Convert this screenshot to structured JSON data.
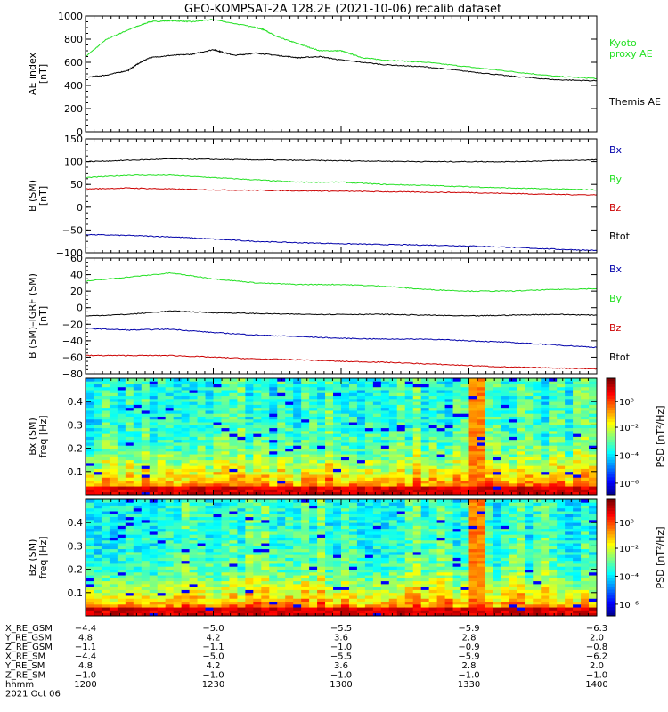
{
  "title": "GEO-KOMPSAT-2A 128.2E (2021-10-06) recalib dataset",
  "colors": {
    "black": "#000000",
    "green": "#22e022",
    "red": "#cc0000",
    "blue": "#0000aa"
  },
  "chart_data": [
    {
      "type": "line",
      "ylabel": [
        "AE index",
        "[nT]"
      ],
      "ylim": [
        0,
        1000
      ],
      "yticks": [
        0,
        200,
        400,
        600,
        800,
        1000
      ],
      "series": [
        {
          "name": "Kyoto proxy AE",
          "label_lines": [
            "Kyoto",
            "proxy AE"
          ],
          "color": "#22e022",
          "x": [
            0,
            5,
            10,
            15,
            20,
            25,
            30,
            40,
            42,
            45,
            50,
            55,
            60,
            65,
            70,
            80,
            90,
            100,
            110,
            120
          ],
          "y": [
            650,
            800,
            880,
            950,
            960,
            950,
            970,
            900,
            880,
            820,
            760,
            700,
            700,
            640,
            620,
            600,
            560,
            520,
            480,
            460
          ]
        },
        {
          "name": "Themis AE",
          "label_lines": [
            "Themis AE"
          ],
          "color": "#000000",
          "x": [
            0,
            5,
            10,
            12,
            15,
            20,
            25,
            30,
            32,
            35,
            40,
            45,
            50,
            55,
            60,
            70,
            80,
            90,
            100,
            110,
            120
          ],
          "y": [
            470,
            490,
            530,
            580,
            640,
            660,
            670,
            710,
            690,
            660,
            680,
            660,
            640,
            650,
            620,
            580,
            560,
            520,
            480,
            450,
            440
          ]
        }
      ]
    },
    {
      "type": "line",
      "ylabel": [
        "B (SM)",
        "[nT]"
      ],
      "ylim": [
        -100,
        150
      ],
      "yticks": [
        -100,
        -50,
        0,
        50,
        100,
        150
      ],
      "series": [
        {
          "name": "Bx",
          "color": "#0000aa",
          "x": [
            0,
            10,
            20,
            30,
            40,
            50,
            60,
            70,
            80,
            90,
            100,
            110,
            120
          ],
          "y": [
            -60,
            -62,
            -65,
            -70,
            -75,
            -78,
            -80,
            -82,
            -83,
            -85,
            -88,
            -92,
            -95
          ]
        },
        {
          "name": "By",
          "color": "#22e022",
          "x": [
            0,
            10,
            20,
            30,
            40,
            50,
            60,
            70,
            80,
            90,
            100,
            110,
            120
          ],
          "y": [
            65,
            70,
            70,
            65,
            60,
            55,
            55,
            50,
            48,
            45,
            42,
            40,
            38
          ]
        },
        {
          "name": "Bz",
          "color": "#cc0000",
          "x": [
            0,
            10,
            20,
            30,
            40,
            50,
            60,
            70,
            80,
            90,
            100,
            110,
            120
          ],
          "y": [
            40,
            42,
            40,
            38,
            37,
            36,
            35,
            34,
            33,
            32,
            30,
            28,
            27
          ]
        },
        {
          "name": "Btot",
          "color": "#000000",
          "x": [
            0,
            10,
            20,
            30,
            40,
            50,
            60,
            70,
            80,
            90,
            100,
            110,
            120
          ],
          "y": [
            100,
            103,
            106,
            105,
            104,
            103,
            102,
            101,
            100,
            100,
            100,
            102,
            104
          ]
        }
      ]
    },
    {
      "type": "line",
      "ylabel": [
        "B (SM)–IGRF (SM)",
        "[nT]"
      ],
      "ylim": [
        -80,
        60
      ],
      "yticks": [
        -80,
        -60,
        -40,
        -20,
        0,
        20,
        40,
        60
      ],
      "series": [
        {
          "name": "Bx",
          "color": "#0000aa",
          "x": [
            0,
            10,
            20,
            30,
            40,
            50,
            60,
            70,
            80,
            90,
            100,
            110,
            120
          ],
          "y": [
            -25,
            -27,
            -26,
            -30,
            -33,
            -35,
            -37,
            -38,
            -38,
            -40,
            -42,
            -45,
            -48
          ]
        },
        {
          "name": "By",
          "color": "#22e022",
          "x": [
            0,
            10,
            20,
            30,
            40,
            50,
            60,
            70,
            80,
            90,
            100,
            110,
            120
          ],
          "y": [
            32,
            37,
            42,
            35,
            30,
            28,
            28,
            26,
            22,
            20,
            20,
            22,
            23
          ]
        },
        {
          "name": "Bz",
          "color": "#cc0000",
          "x": [
            0,
            10,
            20,
            30,
            40,
            50,
            60,
            70,
            80,
            90,
            100,
            110,
            120
          ],
          "y": [
            -58,
            -58,
            -58,
            -60,
            -62,
            -63,
            -65,
            -66,
            -68,
            -70,
            -72,
            -73,
            -74
          ]
        },
        {
          "name": "Btot",
          "color": "#000000",
          "x": [
            0,
            10,
            20,
            30,
            40,
            50,
            60,
            70,
            80,
            90,
            100,
            110,
            120
          ],
          "y": [
            -10,
            -8,
            -4,
            -6,
            -7,
            -8,
            -8,
            -8,
            -9,
            -10,
            -9,
            -8,
            -9
          ]
        }
      ]
    },
    {
      "type": "heatmap",
      "ylabel": [
        "Bx (SM)",
        "freq [Hz]"
      ],
      "yticks": [
        0.1,
        0.2,
        0.3,
        0.4
      ],
      "colorbar_label": "PSD [nT²/Hz]",
      "colorbar_ticks": [
        "10⁰",
        "10⁻²",
        "10⁻⁴",
        "10⁻⁶"
      ],
      "colorbar_values": [
        0,
        -2,
        -4,
        -6
      ]
    },
    {
      "type": "heatmap",
      "ylabel": [
        "Bz (SM)",
        "freq [Hz]"
      ],
      "yticks": [
        0.1,
        0.2,
        0.3,
        0.4
      ],
      "colorbar_label": "PSD [nT²/Hz]",
      "colorbar_ticks": [
        "10⁰",
        "10⁻²",
        "10⁻⁴",
        "10⁻⁶"
      ],
      "colorbar_values": [
        0,
        -2,
        -4,
        -6
      ]
    }
  ],
  "time_axis": {
    "xlim": [
      0,
      120
    ],
    "ticks": [
      0,
      30,
      60,
      90,
      120
    ],
    "rows": [
      {
        "label": "X_RE_GSM",
        "values": [
          "−4.4",
          "−5.0",
          "−5.5",
          "−5.9",
          "−6.3"
        ]
      },
      {
        "label": "Y_RE_GSM",
        "values": [
          "4.8",
          "4.2",
          "3.6",
          "2.8",
          "2.0"
        ]
      },
      {
        "label": "Z_RE_GSM",
        "values": [
          "−1.1",
          "−1.1",
          "−1.0",
          "−0.9",
          "−0.8"
        ]
      },
      {
        "label": "X_RE_SM",
        "values": [
          "−4.4",
          "−5.0",
          "−5.5",
          "−5.9",
          "−6.2"
        ]
      },
      {
        "label": "Y_RE_SM",
        "values": [
          "4.8",
          "4.2",
          "3.6",
          "2.8",
          "2.0"
        ]
      },
      {
        "label": "Z_RE_SM",
        "values": [
          "−1.0",
          "−1.0",
          "−1.0",
          "−1.0",
          "−1.0"
        ]
      },
      {
        "label": "hhmm",
        "values": [
          "1200",
          "1230",
          "1300",
          "1330",
          "1400"
        ]
      }
    ],
    "date": "2021 Oct 06"
  }
}
